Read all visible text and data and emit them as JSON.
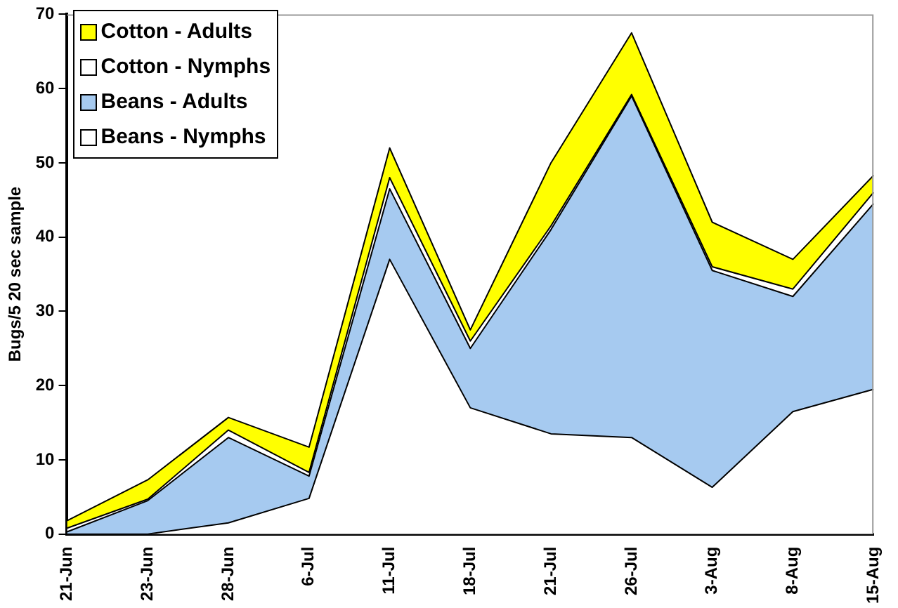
{
  "chart_data": {
    "type": "area",
    "stacked": true,
    "ylabel": "Bugs/5 20 sec sample",
    "categories": [
      "21-Jun",
      "23-Jun",
      "28-Jun",
      "6-Jul",
      "11-Jul",
      "18-Jul",
      "21-Jul",
      "26-Jul",
      "3-Aug",
      "8-Aug",
      "15-Aug"
    ],
    "series": [
      {
        "name": "Beans - Nymphs",
        "color": "#ffffff",
        "values": [
          0,
          0,
          1.5,
          4.8,
          37,
          17,
          13.5,
          13,
          6.3,
          16.5,
          19.5
        ]
      },
      {
        "name": "Beans - Adults",
        "color": "#a6caf0",
        "values": [
          0.3,
          4.5,
          11.5,
          3,
          9.5,
          8,
          27.5,
          46,
          29.2,
          15.5,
          25
        ]
      },
      {
        "name": "Cotton - Nymphs",
        "color": "#ffffff",
        "values": [
          0.5,
          0.2,
          1,
          0.5,
          1.5,
          1,
          0.5,
          0.2,
          0.5,
          1,
          1.5
        ]
      },
      {
        "name": "Cotton - Adults",
        "color": "#ffff00",
        "values": [
          1,
          2.6,
          1.7,
          3.4,
          4,
          1.5,
          8.5,
          8.3,
          6,
          4,
          2.3
        ]
      }
    ],
    "ylim": [
      0,
      70
    ],
    "yticks": [
      0,
      10,
      20,
      30,
      40,
      50,
      60,
      70
    ],
    "grid": false,
    "legend": "top left"
  }
}
